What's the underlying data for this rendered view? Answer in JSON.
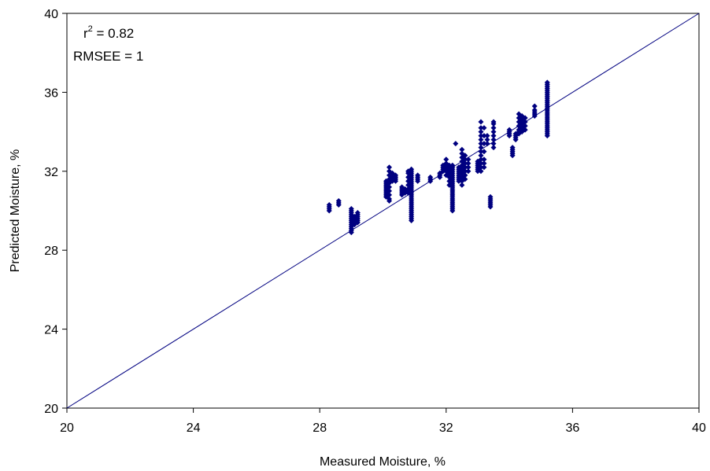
{
  "chart_data": {
    "type": "scatter",
    "title": "",
    "xlabel": "Measured Moisture, %",
    "ylabel": "Predicted Moisture, %",
    "xlim": [
      20,
      40
    ],
    "ylim": [
      20,
      40
    ],
    "xticks": [
      "20",
      "24",
      "28",
      "32",
      "36",
      "40"
    ],
    "yticks": [
      "20",
      "24",
      "28",
      "32",
      "36",
      "40"
    ],
    "grid": false,
    "legend": "none",
    "marker": "diamond",
    "marker_color": "#000080",
    "line_color": "#000080",
    "reference_line": {
      "from": [
        20,
        20
      ],
      "to": [
        40,
        40
      ]
    },
    "annotations": {
      "r2_base": "r",
      "r2_sup": "2",
      "r2_value": " = 0.82",
      "rmsee": "RMSEE = 1"
    },
    "points": [
      [
        28.3,
        30.0
      ],
      [
        28.3,
        30.1
      ],
      [
        28.3,
        30.2
      ],
      [
        28.3,
        30.3
      ],
      [
        28.6,
        30.3
      ],
      [
        28.6,
        30.4
      ],
      [
        28.6,
        30.5
      ],
      [
        29.0,
        28.9
      ],
      [
        29.0,
        29.0
      ],
      [
        29.0,
        29.1
      ],
      [
        29.0,
        29.2
      ],
      [
        29.0,
        29.3
      ],
      [
        29.0,
        29.4
      ],
      [
        29.0,
        29.5
      ],
      [
        29.0,
        29.6
      ],
      [
        29.0,
        29.7
      ],
      [
        29.0,
        29.8
      ],
      [
        29.0,
        29.9
      ],
      [
        29.0,
        30.0
      ],
      [
        29.0,
        30.1
      ],
      [
        29.1,
        29.3
      ],
      [
        29.1,
        29.5
      ],
      [
        29.1,
        29.7
      ],
      [
        29.2,
        29.4
      ],
      [
        29.2,
        29.5
      ],
      [
        29.2,
        29.6
      ],
      [
        29.2,
        29.7
      ],
      [
        29.2,
        29.8
      ],
      [
        29.2,
        29.9
      ],
      [
        30.1,
        30.7
      ],
      [
        30.1,
        30.8
      ],
      [
        30.1,
        30.9
      ],
      [
        30.1,
        31.0
      ],
      [
        30.1,
        31.1
      ],
      [
        30.1,
        31.2
      ],
      [
        30.1,
        31.3
      ],
      [
        30.1,
        31.4
      ],
      [
        30.1,
        31.5
      ],
      [
        30.2,
        30.5
      ],
      [
        30.2,
        30.6
      ],
      [
        30.2,
        30.8
      ],
      [
        30.2,
        31.0
      ],
      [
        30.2,
        31.2
      ],
      [
        30.2,
        31.4
      ],
      [
        30.2,
        31.6
      ],
      [
        30.2,
        31.8
      ],
      [
        30.2,
        32.0
      ],
      [
        30.2,
        32.2
      ],
      [
        30.3,
        31.5
      ],
      [
        30.3,
        31.7
      ],
      [
        30.3,
        31.9
      ],
      [
        30.4,
        31.5
      ],
      [
        30.4,
        31.6
      ],
      [
        30.4,
        31.7
      ],
      [
        30.4,
        31.8
      ],
      [
        30.6,
        30.8
      ],
      [
        30.6,
        30.9
      ],
      [
        30.6,
        31.0
      ],
      [
        30.6,
        31.1
      ],
      [
        30.6,
        31.2
      ],
      [
        30.7,
        30.9
      ],
      [
        30.7,
        31.0
      ],
      [
        30.7,
        31.1
      ],
      [
        30.8,
        30.9
      ],
      [
        30.8,
        31.1
      ],
      [
        30.8,
        31.3
      ],
      [
        30.8,
        31.5
      ],
      [
        30.8,
        31.7
      ],
      [
        30.8,
        31.9
      ],
      [
        30.8,
        32.0
      ],
      [
        30.9,
        29.5
      ],
      [
        30.9,
        29.6
      ],
      [
        30.9,
        29.7
      ],
      [
        30.9,
        29.8
      ],
      [
        30.9,
        29.9
      ],
      [
        30.9,
        30.0
      ],
      [
        30.9,
        30.1
      ],
      [
        30.9,
        30.2
      ],
      [
        30.9,
        30.3
      ],
      [
        30.9,
        30.4
      ],
      [
        30.9,
        30.5
      ],
      [
        30.9,
        30.6
      ],
      [
        30.9,
        30.7
      ],
      [
        30.9,
        30.8
      ],
      [
        30.9,
        30.9
      ],
      [
        30.9,
        31.0
      ],
      [
        30.9,
        31.1
      ],
      [
        30.9,
        31.2
      ],
      [
        30.9,
        31.3
      ],
      [
        30.9,
        31.4
      ],
      [
        30.9,
        31.5
      ],
      [
        30.9,
        31.6
      ],
      [
        30.9,
        31.7
      ],
      [
        30.9,
        31.8
      ],
      [
        30.9,
        31.9
      ],
      [
        30.9,
        32.0
      ],
      [
        30.9,
        32.1
      ],
      [
        31.1,
        31.5
      ],
      [
        31.1,
        31.6
      ],
      [
        31.1,
        31.7
      ],
      [
        31.1,
        31.8
      ],
      [
        31.5,
        31.5
      ],
      [
        31.5,
        31.6
      ],
      [
        31.5,
        31.7
      ],
      [
        31.8,
        31.7
      ],
      [
        31.8,
        31.8
      ],
      [
        31.8,
        31.9
      ],
      [
        31.9,
        32.0
      ],
      [
        31.9,
        32.1
      ],
      [
        31.9,
        32.2
      ],
      [
        31.9,
        32.3
      ],
      [
        32.0,
        31.8
      ],
      [
        32.0,
        32.0
      ],
      [
        32.0,
        32.2
      ],
      [
        32.0,
        32.4
      ],
      [
        32.0,
        32.6
      ],
      [
        32.1,
        31.3
      ],
      [
        32.1,
        31.5
      ],
      [
        32.1,
        31.7
      ],
      [
        32.1,
        31.9
      ],
      [
        32.1,
        32.1
      ],
      [
        32.1,
        32.3
      ],
      [
        32.2,
        30.0
      ],
      [
        32.2,
        30.1
      ],
      [
        32.2,
        30.2
      ],
      [
        32.2,
        30.3
      ],
      [
        32.2,
        30.4
      ],
      [
        32.2,
        30.5
      ],
      [
        32.2,
        30.6
      ],
      [
        32.2,
        30.7
      ],
      [
        32.2,
        30.8
      ],
      [
        32.2,
        30.9
      ],
      [
        32.2,
        31.0
      ],
      [
        32.2,
        31.1
      ],
      [
        32.2,
        31.2
      ],
      [
        32.2,
        31.3
      ],
      [
        32.2,
        31.4
      ],
      [
        32.2,
        31.5
      ],
      [
        32.2,
        31.6
      ],
      [
        32.2,
        31.7
      ],
      [
        32.2,
        31.8
      ],
      [
        32.2,
        31.9
      ],
      [
        32.2,
        32.0
      ],
      [
        32.2,
        32.1
      ],
      [
        32.2,
        32.2
      ],
      [
        32.2,
        32.3
      ],
      [
        32.3,
        33.4
      ],
      [
        32.4,
        31.5
      ],
      [
        32.4,
        31.6
      ],
      [
        32.4,
        31.7
      ],
      [
        32.4,
        31.8
      ],
      [
        32.4,
        31.9
      ],
      [
        32.4,
        32.0
      ],
      [
        32.4,
        32.1
      ],
      [
        32.4,
        32.2
      ],
      [
        32.5,
        31.3
      ],
      [
        32.5,
        31.5
      ],
      [
        32.5,
        31.7
      ],
      [
        32.5,
        31.9
      ],
      [
        32.5,
        32.1
      ],
      [
        32.5,
        32.3
      ],
      [
        32.5,
        32.5
      ],
      [
        32.5,
        32.7
      ],
      [
        32.5,
        32.9
      ],
      [
        32.5,
        33.1
      ],
      [
        32.6,
        31.6
      ],
      [
        32.6,
        31.8
      ],
      [
        32.6,
        32.0
      ],
      [
        32.6,
        32.2
      ],
      [
        32.6,
        32.4
      ],
      [
        32.6,
        32.6
      ],
      [
        32.6,
        32.8
      ],
      [
        32.7,
        32.0
      ],
      [
        32.7,
        32.2
      ],
      [
        32.7,
        32.4
      ],
      [
        32.7,
        32.6
      ],
      [
        33.0,
        32.0
      ],
      [
        33.0,
        32.1
      ],
      [
        33.0,
        32.2
      ],
      [
        33.0,
        32.3
      ],
      [
        33.0,
        32.4
      ],
      [
        33.0,
        32.5
      ],
      [
        33.1,
        32.0
      ],
      [
        33.1,
        32.2
      ],
      [
        33.1,
        32.4
      ],
      [
        33.1,
        32.6
      ],
      [
        33.1,
        32.8
      ],
      [
        33.1,
        33.0
      ],
      [
        33.1,
        33.2
      ],
      [
        33.1,
        33.4
      ],
      [
        33.1,
        33.6
      ],
      [
        33.1,
        33.8
      ],
      [
        33.1,
        34.0
      ],
      [
        33.1,
        34.2
      ],
      [
        33.1,
        34.5
      ],
      [
        33.2,
        32.2
      ],
      [
        33.2,
        32.4
      ],
      [
        33.2,
        32.6
      ],
      [
        33.2,
        33.0
      ],
      [
        33.2,
        33.4
      ],
      [
        33.2,
        33.8
      ],
      [
        33.2,
        34.2
      ],
      [
        33.3,
        33.4
      ],
      [
        33.3,
        33.6
      ],
      [
        33.3,
        33.8
      ],
      [
        33.4,
        30.2
      ],
      [
        33.4,
        30.3
      ],
      [
        33.4,
        30.4
      ],
      [
        33.4,
        30.5
      ],
      [
        33.4,
        30.6
      ],
      [
        33.4,
        30.7
      ],
      [
        33.5,
        33.2
      ],
      [
        33.5,
        33.4
      ],
      [
        33.5,
        33.6
      ],
      [
        33.5,
        33.8
      ],
      [
        33.5,
        34.0
      ],
      [
        33.5,
        34.2
      ],
      [
        33.5,
        34.4
      ],
      [
        33.5,
        34.5
      ],
      [
        34.0,
        33.8
      ],
      [
        34.0,
        33.9
      ],
      [
        34.0,
        34.0
      ],
      [
        34.0,
        34.1
      ],
      [
        34.1,
        32.8
      ],
      [
        34.1,
        32.9
      ],
      [
        34.1,
        33.0
      ],
      [
        34.1,
        33.1
      ],
      [
        34.1,
        33.2
      ],
      [
        34.2,
        33.6
      ],
      [
        34.2,
        33.7
      ],
      [
        34.2,
        33.8
      ],
      [
        34.2,
        33.9
      ],
      [
        34.3,
        33.9
      ],
      [
        34.3,
        34.0
      ],
      [
        34.3,
        34.1
      ],
      [
        34.3,
        34.3
      ],
      [
        34.3,
        34.5
      ],
      [
        34.3,
        34.7
      ],
      [
        34.3,
        34.9
      ],
      [
        34.4,
        34.0
      ],
      [
        34.4,
        34.2
      ],
      [
        34.4,
        34.4
      ],
      [
        34.4,
        34.6
      ],
      [
        34.4,
        34.8
      ],
      [
        34.5,
        34.1
      ],
      [
        34.5,
        34.3
      ],
      [
        34.5,
        34.5
      ],
      [
        34.5,
        34.7
      ],
      [
        34.8,
        34.8
      ],
      [
        34.8,
        34.9
      ],
      [
        34.8,
        35.0
      ],
      [
        34.8,
        35.1
      ],
      [
        34.8,
        35.3
      ],
      [
        35.2,
        33.8
      ],
      [
        35.2,
        33.9
      ],
      [
        35.2,
        34.0
      ],
      [
        35.2,
        34.1
      ],
      [
        35.2,
        34.2
      ],
      [
        35.2,
        34.3
      ],
      [
        35.2,
        34.4
      ],
      [
        35.2,
        34.5
      ],
      [
        35.2,
        34.6
      ],
      [
        35.2,
        34.7
      ],
      [
        35.2,
        34.8
      ],
      [
        35.2,
        34.9
      ],
      [
        35.2,
        35.0
      ],
      [
        35.2,
        35.1
      ],
      [
        35.2,
        35.2
      ],
      [
        35.2,
        35.3
      ],
      [
        35.2,
        35.4
      ],
      [
        35.2,
        35.5
      ],
      [
        35.2,
        35.6
      ],
      [
        35.2,
        35.7
      ],
      [
        35.2,
        35.8
      ],
      [
        35.2,
        35.9
      ],
      [
        35.2,
        36.0
      ],
      [
        35.2,
        36.1
      ],
      [
        35.2,
        36.2
      ],
      [
        35.2,
        36.3
      ],
      [
        35.2,
        36.4
      ],
      [
        35.2,
        36.5
      ]
    ]
  }
}
